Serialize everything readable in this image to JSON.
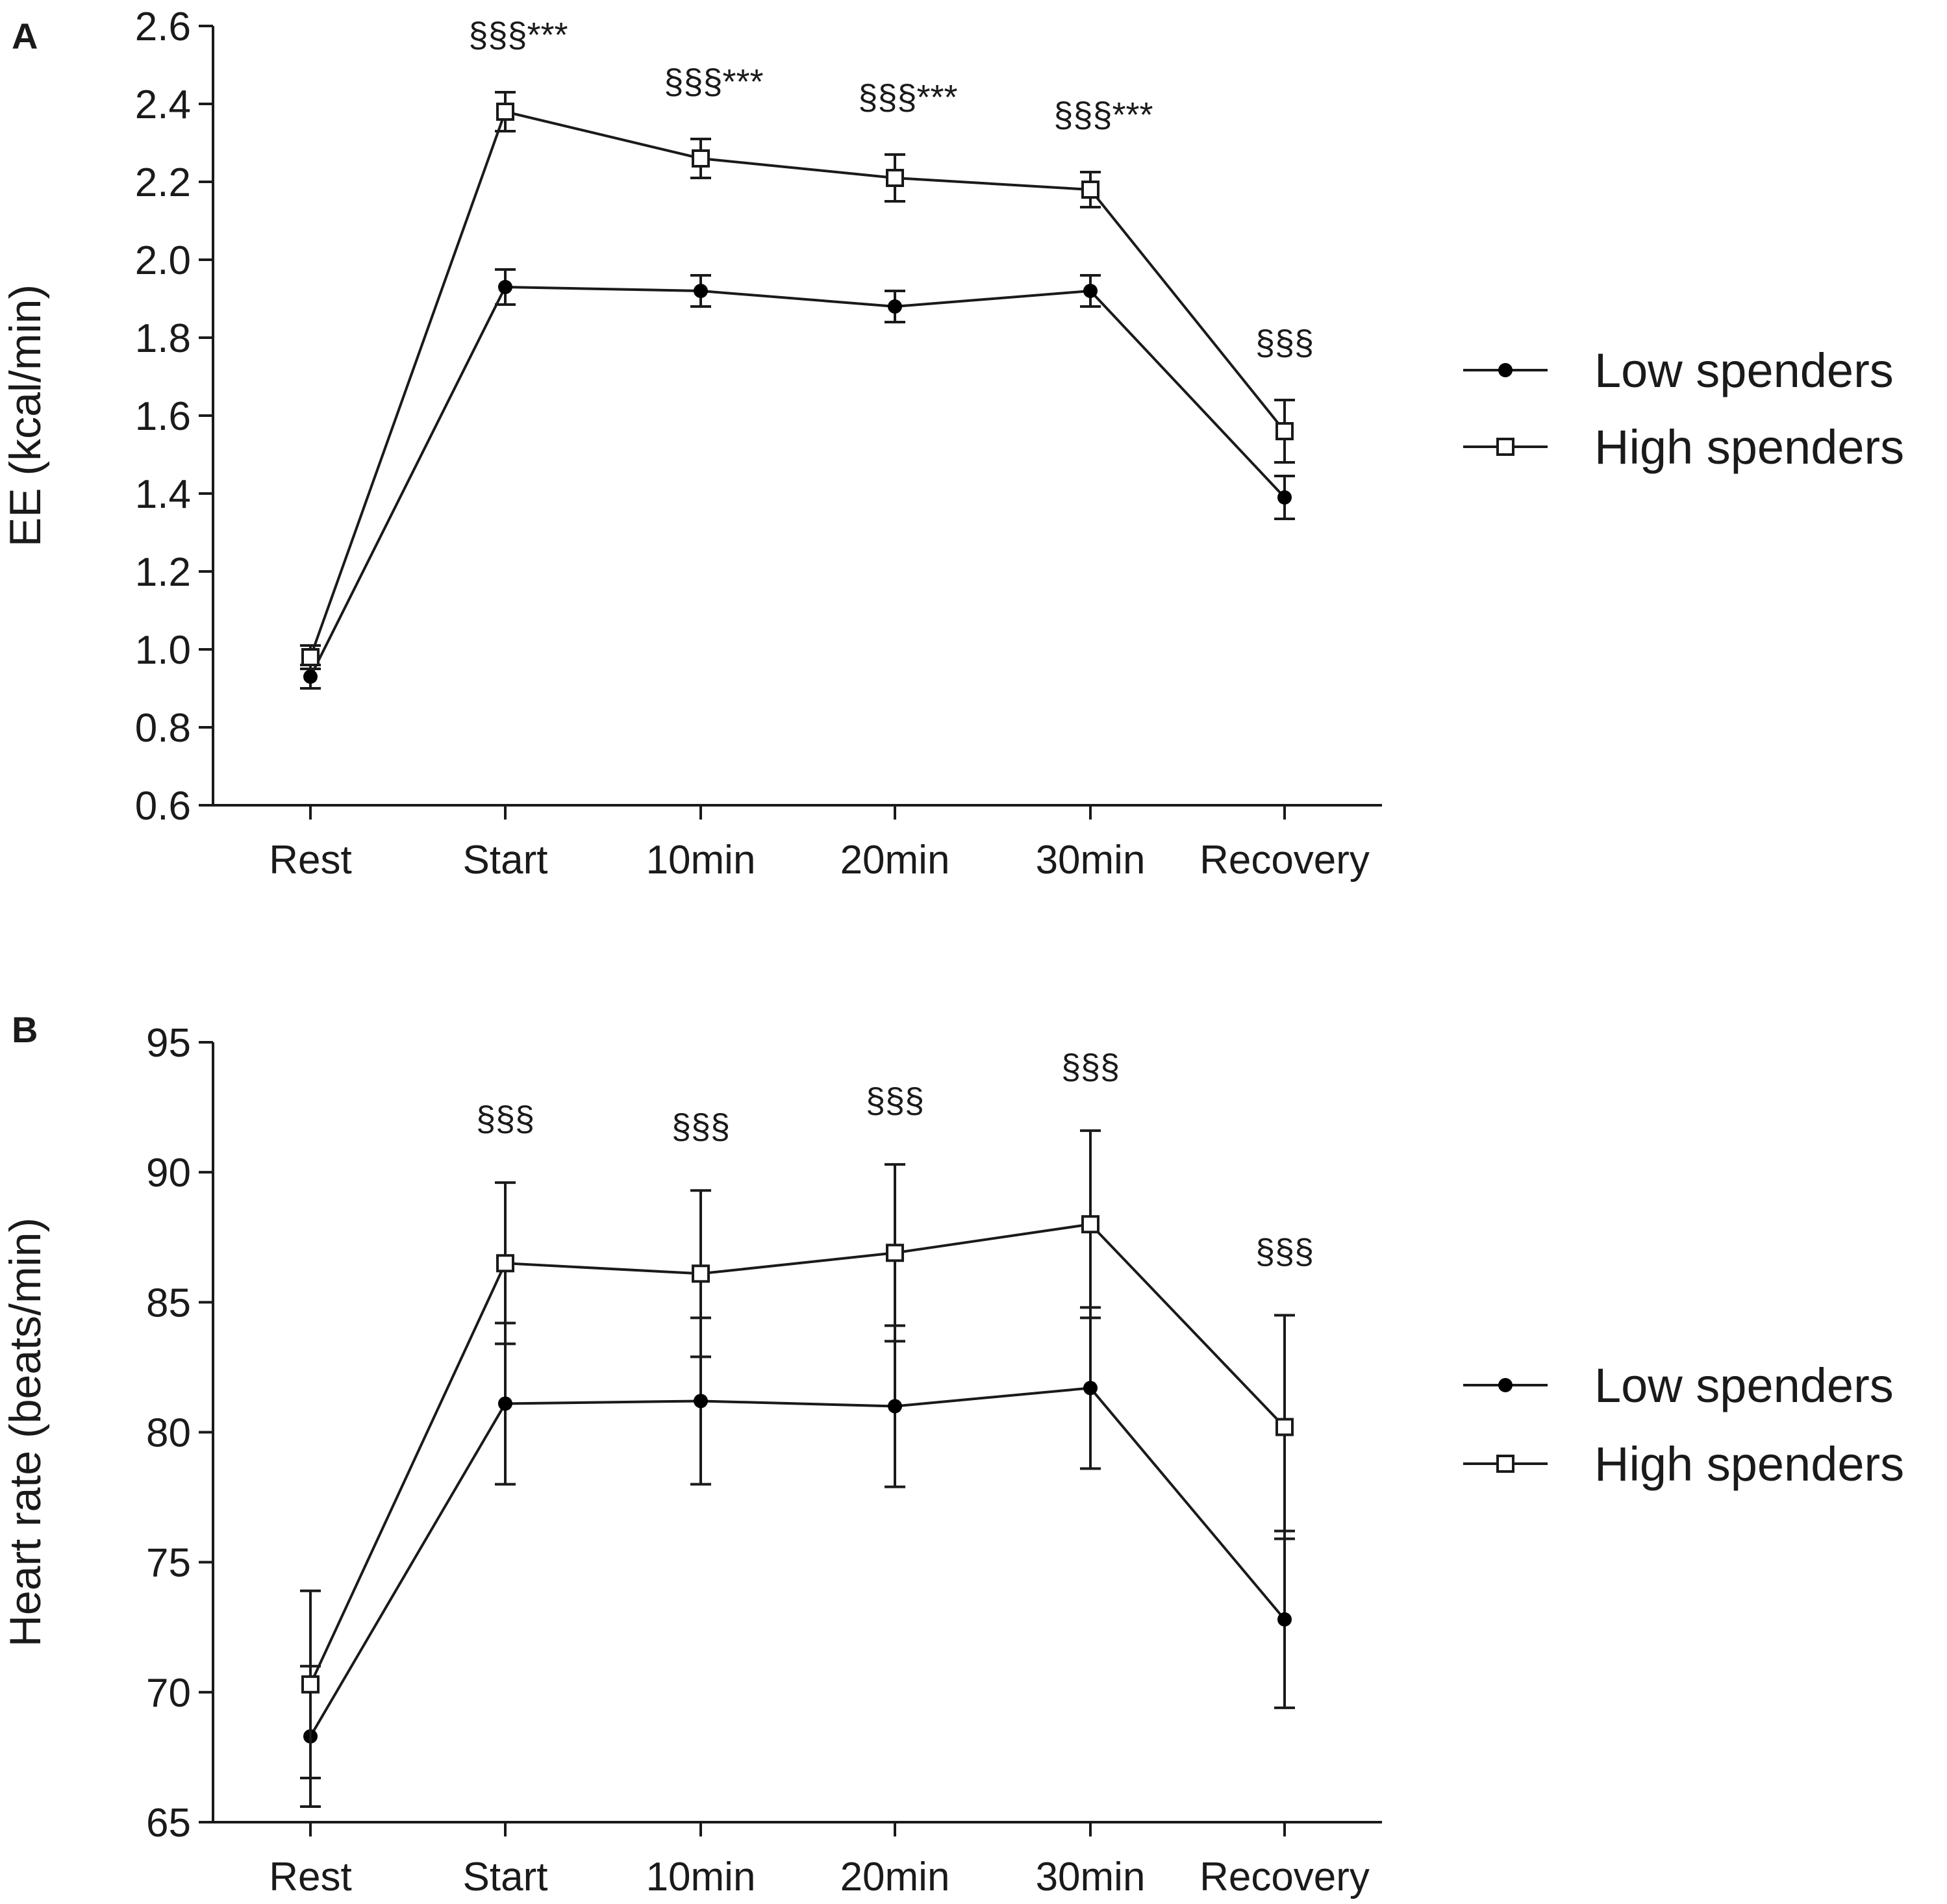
{
  "chart_data": [
    {
      "panel": "A",
      "type": "line",
      "ylabel": "EE (kcal/min)",
      "xlabel": "",
      "categories": [
        "Rest",
        "Start",
        "10min",
        "20min",
        "30min",
        "Recovery"
      ],
      "ylim": [
        0.6,
        2.6
      ],
      "yticks": [
        "0.6",
        "0.8",
        "1.0",
        "1.2",
        "1.4",
        "1.6",
        "1.8",
        "2.0",
        "2.2",
        "2.4",
        "2.6"
      ],
      "series": [
        {
          "name": "Low spenders",
          "marker": "filled-circle",
          "values": [
            0.93,
            1.93,
            1.92,
            1.88,
            1.92,
            1.39
          ],
          "errors": [
            0.03,
            0.045,
            0.04,
            0.04,
            0.04,
            0.055
          ]
        },
        {
          "name": "High spenders",
          "marker": "open-square",
          "values": [
            0.98,
            2.38,
            2.26,
            2.21,
            2.18,
            1.56
          ],
          "errors": [
            0.03,
            0.05,
            0.05,
            0.06,
            0.045,
            0.08
          ]
        }
      ],
      "annotations": [
        "",
        "§§§***",
        "§§§***",
        "§§§***",
        "§§§***",
        "§§§"
      ],
      "legend": "right"
    },
    {
      "panel": "B",
      "type": "line",
      "ylabel": "Heart rate (beats/min)",
      "xlabel": "",
      "categories": [
        "Rest",
        "Start",
        "10min",
        "20min",
        "30min",
        "Recovery"
      ],
      "ylim": [
        65,
        95
      ],
      "yticks": [
        "65",
        "70",
        "75",
        "80",
        "85",
        "90",
        "95"
      ],
      "series": [
        {
          "name": "Low spenders",
          "marker": "filled-circle",
          "values": [
            68.3,
            81.1,
            81.2,
            81.0,
            81.7,
            72.8
          ],
          "errors": [
            2.7,
            3.1,
            3.2,
            3.1,
            3.1,
            3.4
          ]
        },
        {
          "name": "High spenders",
          "marker": "open-square",
          "values": [
            70.3,
            86.5,
            86.1,
            86.9,
            88.0,
            80.2
          ],
          "errors": [
            3.6,
            3.1,
            3.2,
            3.4,
            3.6,
            4.3
          ]
        }
      ],
      "annotations": [
        "",
        "§§§",
        "§§§",
        "§§§",
        "§§§",
        "§§§"
      ],
      "legend": "right"
    }
  ]
}
